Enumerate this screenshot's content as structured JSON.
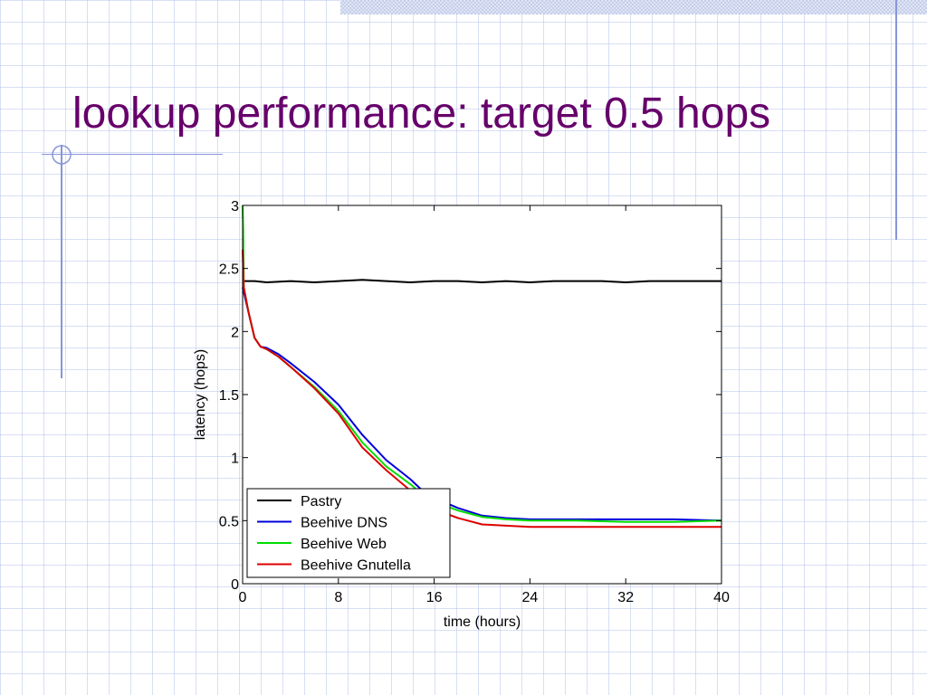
{
  "slide": {
    "title": "lookup performance: target 0.5 hops",
    "accent_color": "#66006a",
    "decoration_color": "#8896d8"
  },
  "chart_data": {
    "type": "line",
    "xlabel": "time (hours)",
    "ylabel": "latency (hops)",
    "xlim": [
      0,
      40
    ],
    "ylim": [
      0,
      3
    ],
    "xticks": [
      0,
      8,
      16,
      24,
      32,
      40
    ],
    "yticks": [
      0,
      0.5,
      1,
      1.5,
      2,
      2.5,
      3
    ],
    "xtick_labels": [
      "0",
      "8",
      "16",
      "24",
      "32",
      "40"
    ],
    "ytick_labels": [
      "0",
      "0.5",
      "1",
      "1.5",
      "2",
      "2.5",
      "3"
    ],
    "grid": false,
    "legend_position": "bottom-left",
    "series": [
      {
        "name": "Pastry",
        "color": "#000000",
        "x": [
          0,
          1,
          2,
          4,
          6,
          8,
          10,
          12,
          14,
          16,
          18,
          20,
          22,
          24,
          26,
          28,
          30,
          32,
          34,
          36,
          38,
          40
        ],
        "y": [
          2.4,
          2.4,
          2.39,
          2.4,
          2.39,
          2.4,
          2.41,
          2.4,
          2.39,
          2.4,
          2.4,
          2.39,
          2.4,
          2.39,
          2.4,
          2.4,
          2.4,
          2.39,
          2.4,
          2.4,
          2.4,
          2.4
        ]
      },
      {
        "name": "Beehive DNS",
        "color": "#0000dd",
        "x": [
          0,
          0.5,
          1,
          1.5,
          2,
          3,
          4,
          6,
          8,
          10,
          12,
          14,
          15,
          16,
          18,
          20,
          22,
          24,
          28,
          32,
          36,
          40
        ],
        "y": [
          2.35,
          2.15,
          1.95,
          1.88,
          1.87,
          1.82,
          1.75,
          1.6,
          1.42,
          1.18,
          0.98,
          0.83,
          0.74,
          0.68,
          0.6,
          0.54,
          0.52,
          0.51,
          0.51,
          0.51,
          0.51,
          0.5
        ]
      },
      {
        "name": "Beehive Web",
        "color": "#00dd00",
        "x": [
          0,
          0.05,
          0.1,
          0.5,
          1,
          1.5,
          2,
          3,
          4,
          6,
          8,
          10,
          12,
          14,
          15,
          16,
          18,
          20,
          22,
          24,
          28,
          32,
          36,
          40
        ],
        "y": [
          3.0,
          2.8,
          2.35,
          2.15,
          1.95,
          1.88,
          1.86,
          1.8,
          1.72,
          1.56,
          1.37,
          1.12,
          0.93,
          0.79,
          0.71,
          0.65,
          0.58,
          0.53,
          0.51,
          0.5,
          0.5,
          0.49,
          0.49,
          0.5
        ]
      },
      {
        "name": "Beehive Gnutella",
        "color": "#dd0000",
        "x": [
          0,
          0.05,
          0.1,
          0.5,
          1,
          1.5,
          2,
          3,
          4,
          6,
          8,
          10,
          12,
          14,
          15,
          16,
          18,
          20,
          22,
          24,
          28,
          32,
          36,
          40
        ],
        "y": [
          2.65,
          2.5,
          2.35,
          2.15,
          1.95,
          1.88,
          1.86,
          1.8,
          1.72,
          1.55,
          1.35,
          1.08,
          0.9,
          0.74,
          0.66,
          0.59,
          0.52,
          0.47,
          0.46,
          0.45,
          0.45,
          0.45,
          0.45,
          0.45
        ]
      }
    ]
  }
}
